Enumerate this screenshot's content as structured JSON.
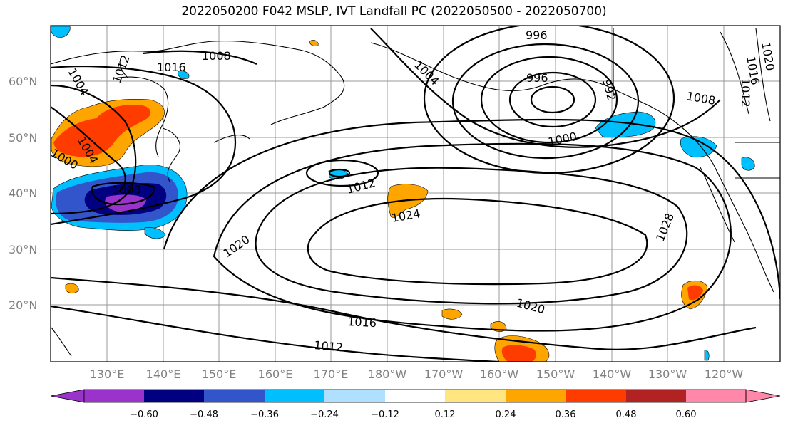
{
  "title": "2022050200 F042 MSLP, IVT Landfall PC (2022050500 - 2022050700)",
  "lat_labels": [
    "60°N",
    "50°N",
    "40°N",
    "30°N",
    "20°N"
  ],
  "lon_labels": [
    "130°E",
    "140°E",
    "150°E",
    "160°E",
    "170°E",
    "180°W",
    "170°W",
    "160°W",
    "150°W",
    "140°W",
    "130°W",
    "120°W"
  ],
  "contour_labels": [
    "996",
    "1008",
    "1016",
    "1004",
    "1012",
    "1004",
    "1000",
    "1008",
    "1012",
    "1024",
    "1020",
    "1028",
    "1016",
    "1012",
    "1020",
    "996",
    "992",
    "1000",
    "1008",
    "1020",
    "1016",
    "1012"
  ],
  "colorbar": {
    "ticks": [
      "−0.60",
      "−0.48",
      "−0.36",
      "−0.24",
      "−0.12",
      "0.12",
      "0.24",
      "0.36",
      "0.48",
      "0.60"
    ],
    "colors": [
      "#9933cc",
      "#000080",
      "#3355cc",
      "#00bfff",
      "#b0e0ff",
      "#ffffff",
      "#ffe680",
      "#ffa500",
      "#ff3c00",
      "#b22222",
      "#ff88aa",
      "#ff88aa"
    ]
  }
}
